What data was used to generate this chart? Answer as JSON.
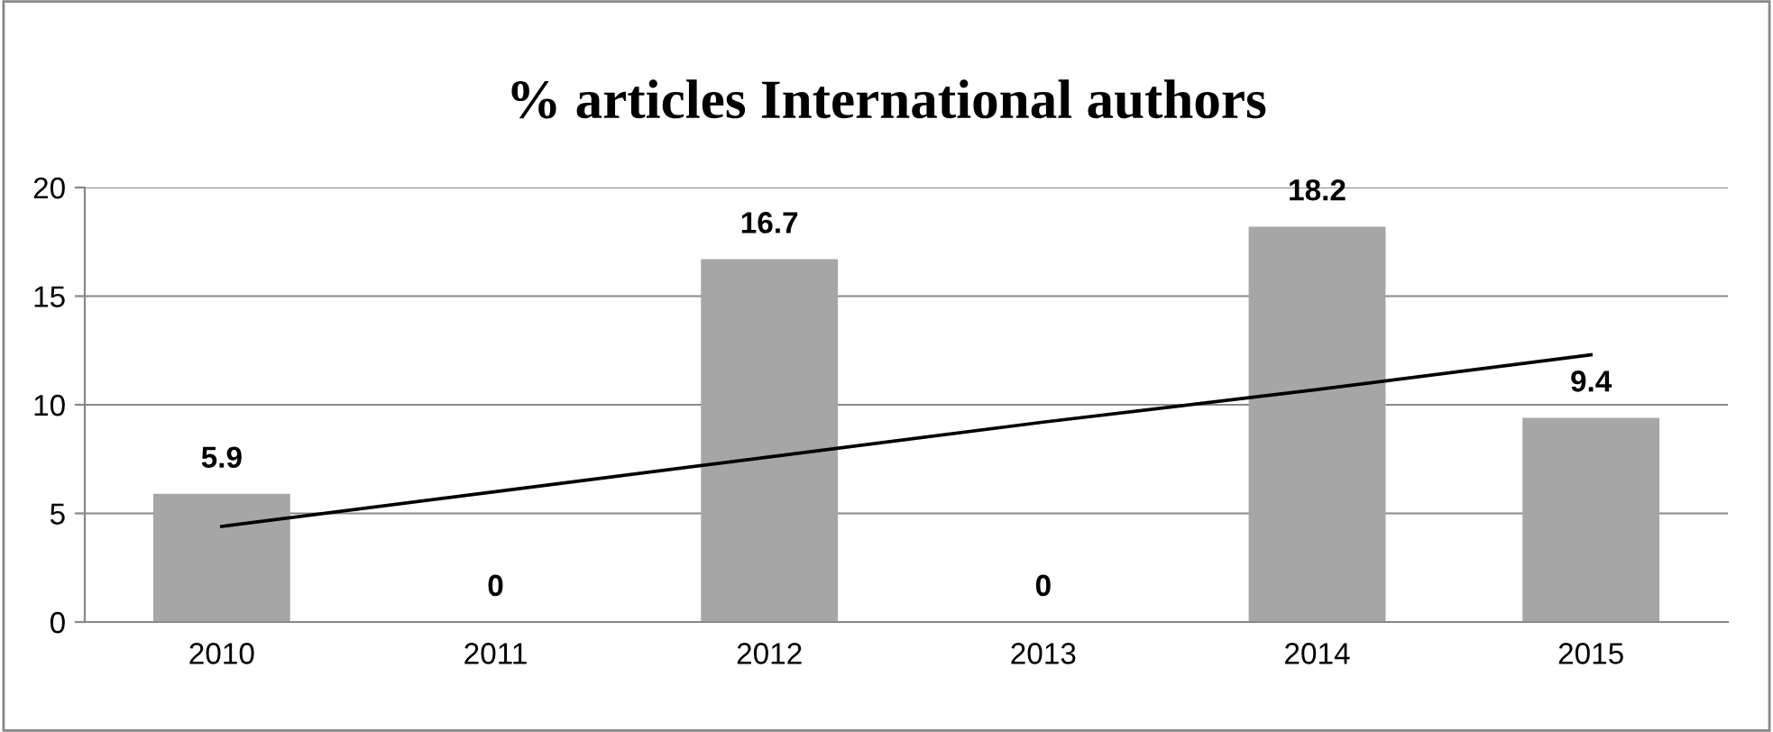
{
  "chart_data": {
    "type": "bar",
    "title": "% articles International authors",
    "categories": [
      "2010",
      "2011",
      "2012",
      "2013",
      "2014",
      "2015"
    ],
    "series": [
      {
        "color": "#a6a6a6",
        "values": [
          5.9,
          0,
          16.7,
          0,
          18.2,
          9.4
        ],
        "value_labels": [
          "5.9",
          "0",
          "16.7",
          "0",
          "18.2",
          "9.4"
        ]
      },
      {
        "type": "line",
        "color": "#000000",
        "values": [
          4.4,
          6.0,
          7.6,
          9.2,
          10.7,
          12.3
        ]
      }
    ],
    "ylim": [
      0,
      20
    ],
    "yticks": [
      0,
      5,
      10,
      15,
      20
    ],
    "grid": "y"
  }
}
